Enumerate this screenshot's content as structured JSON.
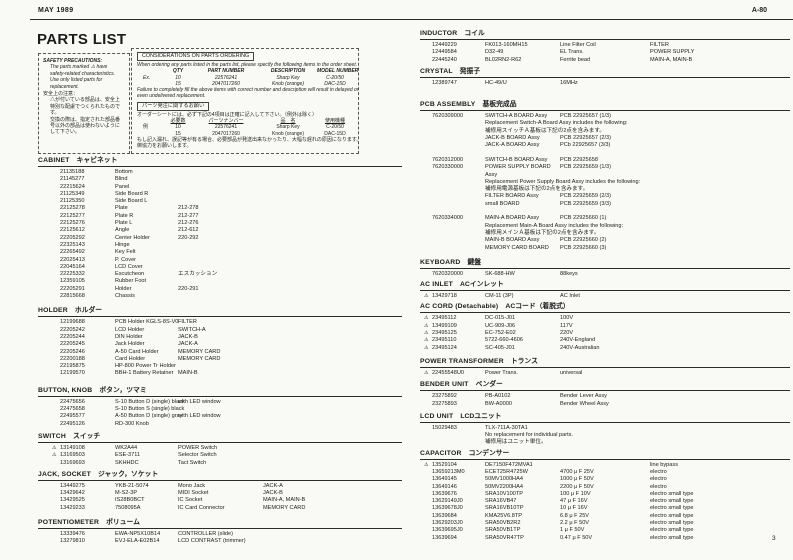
{
  "page": {
    "header_left": "MAY 1989",
    "header_right": "A-80",
    "title": "PARTS LIST",
    "page_number": "3"
  },
  "safety_box": {
    "title": "SAFETY PRECAUTIONS:",
    "lines_en": [
      "The parts marked ⚠ have",
      "safety-related characteristics.",
      "Use only listed parts for",
      "replacement."
    ],
    "jp_heading": "安全上の注意：",
    "lines_jp": [
      "△が付いている部品は、安全上",
      "特別な配慮でつくられたもので",
      "す。",
      "交換の際は、指定された部品番",
      "号以外の部品は使わないように",
      "して下さい。"
    ]
  },
  "ordering_box": {
    "title": "CONSIDERATIONS ON PARTS ORDERING",
    "intro": "When ordering any parts listed in the parts list, please specify the following items in the order sheet.",
    "table_headers": [
      "QTY",
      "PART NUMBER",
      "DESCRIPTION",
      "MODEL NUMBER"
    ],
    "ex_label": "Ex.",
    "rows": [
      [
        "10",
        "22576241",
        "Sharp Key",
        "C-20/50"
      ],
      [
        "15",
        "2047017260",
        "Knob (orange)",
        "DAC-15D"
      ]
    ],
    "outro1": "Failure to completely fill the above items with correct number and description will result in delayed or",
    "outro2": "even undelivered replacement.",
    "jp_title": "パーツ発注に関するお願い",
    "jp_intro": "オーダーシートには、必ず下記の4項目は正確に記入して下さい。（例外は除く）",
    "jp_headers": [
      "必要数",
      "パーツナンバー",
      "品　名",
      "使用機種"
    ],
    "jp_ex_label": "例",
    "jp_rows": [
      [
        "10",
        "22576241",
        "Sharp Key",
        "C-20/50"
      ],
      [
        "15",
        "2047017260",
        "Knob (orange)",
        "DAC-15D"
      ]
    ],
    "jp_outro1": "もし記入漏れ、誤記等が有る場合、必要部品が発送出来なかったり、大幅な遅れの原因になります。",
    "jp_outro2": "御協力をお願いします。"
  },
  "left_sections": [
    {
      "name": "CABINET",
      "jp": "キャビネット",
      "rows": [
        [
          "21135188",
          "Bottom",
          "",
          ""
        ],
        [
          "21145277",
          "Blind",
          "",
          ""
        ],
        [
          "22215624",
          "Panel",
          "",
          ""
        ],
        [
          "21125349",
          "Side Board R",
          "",
          ""
        ],
        [
          "21125350",
          "Side Board L",
          "",
          ""
        ],
        [
          "22125278",
          "Plate",
          "212-278",
          ""
        ],
        [
          "22125277",
          "Plate R",
          "212-277",
          ""
        ],
        [
          "22125276",
          "Plate L",
          "212-276",
          ""
        ],
        [
          "22125612",
          "Angle",
          "212-612",
          ""
        ],
        [
          "22205292",
          "Center Holder",
          "220-292",
          ""
        ],
        [
          "22325143",
          "Hinge",
          "",
          ""
        ],
        [
          "22265492",
          "Key Felt",
          "",
          ""
        ],
        [
          "22025413",
          "P. Cover",
          "",
          ""
        ],
        [
          "22045164",
          "LCD Cover",
          "",
          ""
        ],
        [
          "22225332",
          "Escutcheon",
          "エスカッション",
          ""
        ],
        [
          "12359105",
          "Rubber Foot",
          "",
          ""
        ],
        [
          "22205291",
          "Holder",
          "220-291",
          ""
        ],
        [
          "22815668",
          "Chassis",
          "",
          ""
        ]
      ]
    },
    {
      "name": "HOLDER",
      "jp": "ホルダー",
      "rows": [
        [
          "12199688",
          "PCB Holder KGLS-8S-V0",
          "FILTER",
          ""
        ],
        [
          "22205242",
          "LCD Holder",
          "SWITCH-A",
          ""
        ],
        [
          "22205244",
          "DIN Holder",
          "JACK-B",
          ""
        ],
        [
          "22205245",
          "Jack Holder",
          "JACK-A",
          ""
        ],
        [
          "22205246",
          "A-50 Card Holder",
          "MEMORY CARD",
          ""
        ],
        [
          "22200188",
          "Card Holder",
          "MEMORY CARD",
          ""
        ],
        [
          "22195875",
          "HP-800 Power Tr Holder",
          "",
          ""
        ],
        [
          "12199570",
          "BBH-1 Battery Retainer",
          "MAIN-B",
          ""
        ]
      ]
    },
    {
      "name": "BUTTON, KNOB",
      "jp": "ボタン，ツマミ",
      "rows": [
        [
          "22475656",
          "S-10 Button D (single) black",
          "with LED window",
          ""
        ],
        [
          "22475658",
          "S-10 Button S (single) black",
          "",
          ""
        ],
        [
          "22495577",
          "A-50 Button D (single) gray",
          "with LED window",
          ""
        ],
        [
          "22495126",
          "RD-300 Knob",
          "",
          ""
        ]
      ]
    },
    {
      "name": "SWITCH",
      "jp": "スイッチ",
      "rows": [
        [
          "⚠13149108",
          "WK2A44",
          "POWER Switch",
          ""
        ],
        [
          "⚠13169503",
          "ESE-3711",
          "Selector Switch",
          ""
        ],
        [
          "13169693",
          "SKHHDC",
          "Tact Switch",
          ""
        ]
      ]
    },
    {
      "name": "JACK, SOCKET",
      "jp": "ジャック，ソケット",
      "rows": [
        [
          "13449275",
          "YKB-21-5074",
          "Mono Jack",
          "JACK-A"
        ],
        [
          "13429642",
          "M-S2-3P",
          "MIDI Socket",
          "JACK-B"
        ],
        [
          "13429525",
          "IS28B0BCT",
          "IC Socket",
          "MAIN-A, MAIN-B"
        ],
        [
          "13429233",
          "7508095A",
          "IC Card Connector",
          "MEMORY CARD"
        ]
      ]
    },
    {
      "name": "POTENTIOMETER",
      "jp": "ボリューム",
      "rows": [
        [
          "13339476",
          "EWA-NP5X10B14",
          "CONTROLLER (slide)",
          ""
        ],
        [
          "13279810",
          "EVJ-ELA-E02B14",
          "LCD CONTRAST (trimmer)",
          ""
        ]
      ]
    }
  ],
  "right_sections": [
    {
      "name": "INDUCTOR",
      "jp": "コイル",
      "rows": [
        [
          "12449229",
          "FK013-160MH15",
          "Line Filter Coil",
          "FILTER"
        ],
        [
          "12449584",
          "D32-49",
          "EL Trans.",
          "POWER SUPPLY"
        ],
        [
          "22445240",
          "BL02RN2-R62",
          "Ferrite bead",
          "MAIN-A, MAIN-B"
        ]
      ]
    },
    {
      "name": "CRYSTAL",
      "jp": "発振子",
      "rows": [
        [
          "12389747",
          "HC-49/U",
          "16MHz",
          ""
        ]
      ]
    },
    {
      "name": "PCB ASSEMBLY",
      "jp": "基板完成品",
      "rows": [
        [
          "7620309000",
          "SWITCH-A BOARD Assy",
          "PCB 22925657 (1/3)",
          ""
        ],
        [
          "",
          "Replacement Switch-A Board Assy includes the following:",
          "",
          ""
        ],
        [
          "",
          "補修用スイッチＡ基板は下記の2点を含みます。",
          "",
          ""
        ],
        [
          "",
          "JACK-B BOARD Assy",
          "PCB 22925657 (2/3)",
          ""
        ],
        [
          "",
          "JACK-A BOARD Assy",
          "PCb 22925657 (3/3)",
          ""
        ],
        [
          "",
          "",
          "",
          ""
        ],
        [
          "7620312000",
          "SWITCH-B BOARD Assy",
          "PCB 22925658",
          ""
        ],
        [
          "7620330000",
          "POWER SUPPLY BOARD",
          "PCB 22925659 (1/3)",
          ""
        ],
        [
          "",
          "Assy",
          "",
          ""
        ],
        [
          "",
          "Replacement Power Supply Board Assy includes the following:",
          "",
          ""
        ],
        [
          "",
          "補修用電源基板は下記の2点を含みます。",
          "",
          ""
        ],
        [
          "",
          "FILTER BOARD Assy",
          "PCB 22925659 (2/3)",
          ""
        ],
        [
          "",
          "small BOARD",
          "PCB 22925659 (3/3)",
          ""
        ],
        [
          "",
          "",
          "",
          ""
        ],
        [
          "7620334000",
          "MAIN-A BOARD Assy",
          "PCB 22925660 (1)",
          ""
        ],
        [
          "",
          "Replacement Main-A Board Assy includes the following:",
          "",
          ""
        ],
        [
          "",
          "補修用メインＡ基板は下記の2点を含みます。",
          "",
          ""
        ],
        [
          "",
          "MAIN-B BOARD Assy",
          "PCB 22925660 (2)",
          ""
        ],
        [
          "",
          "MEMORY CARD BOARD",
          "PCB 22925660 (3)",
          ""
        ]
      ]
    },
    {
      "name": "KEYBOARD",
      "jp": "鍵盤",
      "rows": [
        [
          "7620320000",
          "SK-688-HW",
          "88keys",
          ""
        ]
      ]
    },
    {
      "name": "AC INLET",
      "jp": "ACインレット",
      "rows": [
        [
          "⚠13429718",
          "CM-11 (3P)",
          "AC Inlet",
          ""
        ]
      ]
    },
    {
      "name": "AC CORD (Detachable)",
      "jp": "ACコード（着脱式）",
      "rows": [
        [
          "⚠23495112",
          "DC-015-J01",
          "100V",
          ""
        ],
        [
          "⚠13499109",
          "UC-909-J06",
          "117V",
          ""
        ],
        [
          "⚠23495125",
          "EC-752-E02",
          "220V",
          ""
        ],
        [
          "⚠23495110",
          "5722-660-4606",
          "240V-England",
          ""
        ],
        [
          "⚠23495124",
          "SC-405-J01",
          "240V-Australian",
          ""
        ]
      ]
    },
    {
      "name": "POWER TRANSFORMER",
      "jp": "トランス",
      "rows": [
        [
          "⚠22455548U0",
          "Power Trans.",
          "universal",
          ""
        ]
      ]
    },
    {
      "name": "BENDER UNIT",
      "jp": "ベンダー",
      "rows": [
        [
          "23275892",
          "PB-A0102",
          "Bender Lever Assy",
          ""
        ],
        [
          "23275893",
          "BW-A0000",
          "Bender Wheel Assy",
          ""
        ]
      ]
    },
    {
      "name": "LCD UNIT",
      "jp": "LCDユニット",
      "rows": [
        [
          "15029483",
          "TLX-711A-30TA1",
          "",
          ""
        ],
        [
          "",
          "No replacement for individual parts.",
          "",
          ""
        ],
        [
          "",
          "補修用はユニット単位。",
          "",
          ""
        ]
      ]
    },
    {
      "name": "CAPACITOR",
      "jp": "コンデンサー",
      "rows": [
        [
          "⚠13529104",
          "DE7150F472MVA1",
          "",
          "line bypass"
        ],
        [
          "13659213M0",
          "ECET25R4725W",
          "4700 μ F 25V",
          "electro"
        ],
        [
          "13649145",
          "50MV1000HA4",
          "1000 μ F 50V",
          "electro"
        ],
        [
          "13649146",
          "50MV2200HA4",
          "2200 μ F 50V",
          "electro"
        ],
        [
          "13639676",
          "SRA10V100TP",
          "100 μ F 10V",
          "electro small type"
        ],
        [
          "13629149J0",
          "SRA16VB47",
          "47 μ F 16V",
          "electro small type"
        ],
        [
          "13639678J0",
          "SRA16VB10TP",
          "10 μ F 16V",
          "electro small type"
        ],
        [
          "13639684",
          "KMA25V6.8TP",
          "6.8 μ F 25V",
          "electro small type"
        ],
        [
          "13629203J0",
          "SRA50VB2R2",
          "2.2 μ F 50V",
          "electro small type"
        ],
        [
          "13639695J0",
          "SRA50VB1TP",
          "1 μ F 50V",
          "electro small type"
        ],
        [
          "13639694",
          "SRA50VR47TP",
          "0.47 μ F 50V",
          "electro small type"
        ]
      ]
    }
  ]
}
